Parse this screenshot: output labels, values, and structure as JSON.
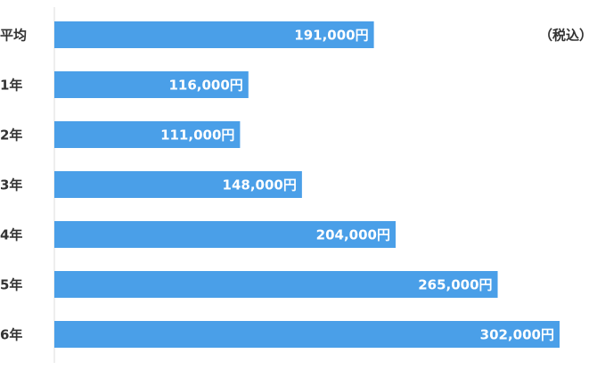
{
  "chart_data": {
    "type": "bar",
    "orientation": "horizontal",
    "categories": [
      "平均",
      "1年",
      "2年",
      "3年",
      "4年",
      "5年",
      "6年"
    ],
    "values": [
      191000,
      116000,
      111000,
      148000,
      204000,
      265000,
      302000
    ],
    "value_labels": [
      "191,000円",
      "116,000円",
      "111,000円",
      "148,000円",
      "204,000円",
      "265,000円",
      "302,000円"
    ],
    "note": "（税込）",
    "xlim": [
      0,
      302000
    ],
    "grid": false,
    "bar_color": "#4a9fe8",
    "axis_color": "#dddddd",
    "label_color": "#333333",
    "value_label_color": "#ffffff"
  }
}
